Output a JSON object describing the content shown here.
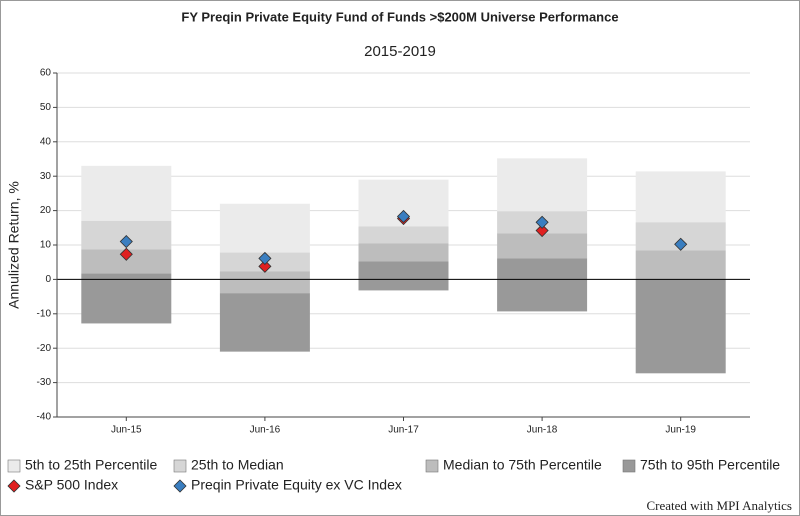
{
  "chart_data": {
    "type": "floating_band",
    "title": "FY Preqin Private Equity Fund of Funds >$200M Universe Performance",
    "subtitle": "2015-2019",
    "y_label": "Annulized Return, %",
    "credit": "Created with MPI Analytics",
    "categories": [
      "Jun-15",
      "Jun-16",
      "Jun-17",
      "Jun-18",
      "Jun-19"
    ],
    "ylim": [
      -40,
      60
    ],
    "yticks": [
      -40,
      -30,
      -20,
      -10,
      0,
      10,
      20,
      30,
      40,
      50,
      60
    ],
    "grid": true,
    "bands": [
      {
        "name": "5th to 25th Percentile",
        "color": "#ebebeb",
        "values": [
          33,
          22,
          29,
          35.2,
          31.4
        ]
      },
      {
        "name": "25th to Median",
        "color": "#d6d6d6",
        "values": [
          17,
          7.8,
          15.4,
          19.8,
          16.6
        ]
      },
      {
        "name": "Median to 75th Percentile",
        "color": "#bdbdbd",
        "values": [
          8.7,
          2.3,
          10.5,
          13.4,
          8.4
        ]
      },
      {
        "name": "75th to 95th Percentile",
        "color": "#999999",
        "values": [
          1.7,
          -4,
          5.2,
          6.1,
          0
        ],
        "low": [
          -12.8,
          -21,
          -3.2,
          -9.3,
          -27.3
        ]
      }
    ],
    "series": [
      {
        "name": "S&P 500 Index",
        "color": "#e02020",
        "values": [
          7.3,
          3.8,
          17.7,
          14.2,
          null
        ]
      },
      {
        "name": "Preqin Private Equity ex VC Index",
        "color": "#3a7ec0",
        "values": [
          11,
          6.1,
          18.3,
          16.6,
          10.2
        ]
      }
    ]
  }
}
